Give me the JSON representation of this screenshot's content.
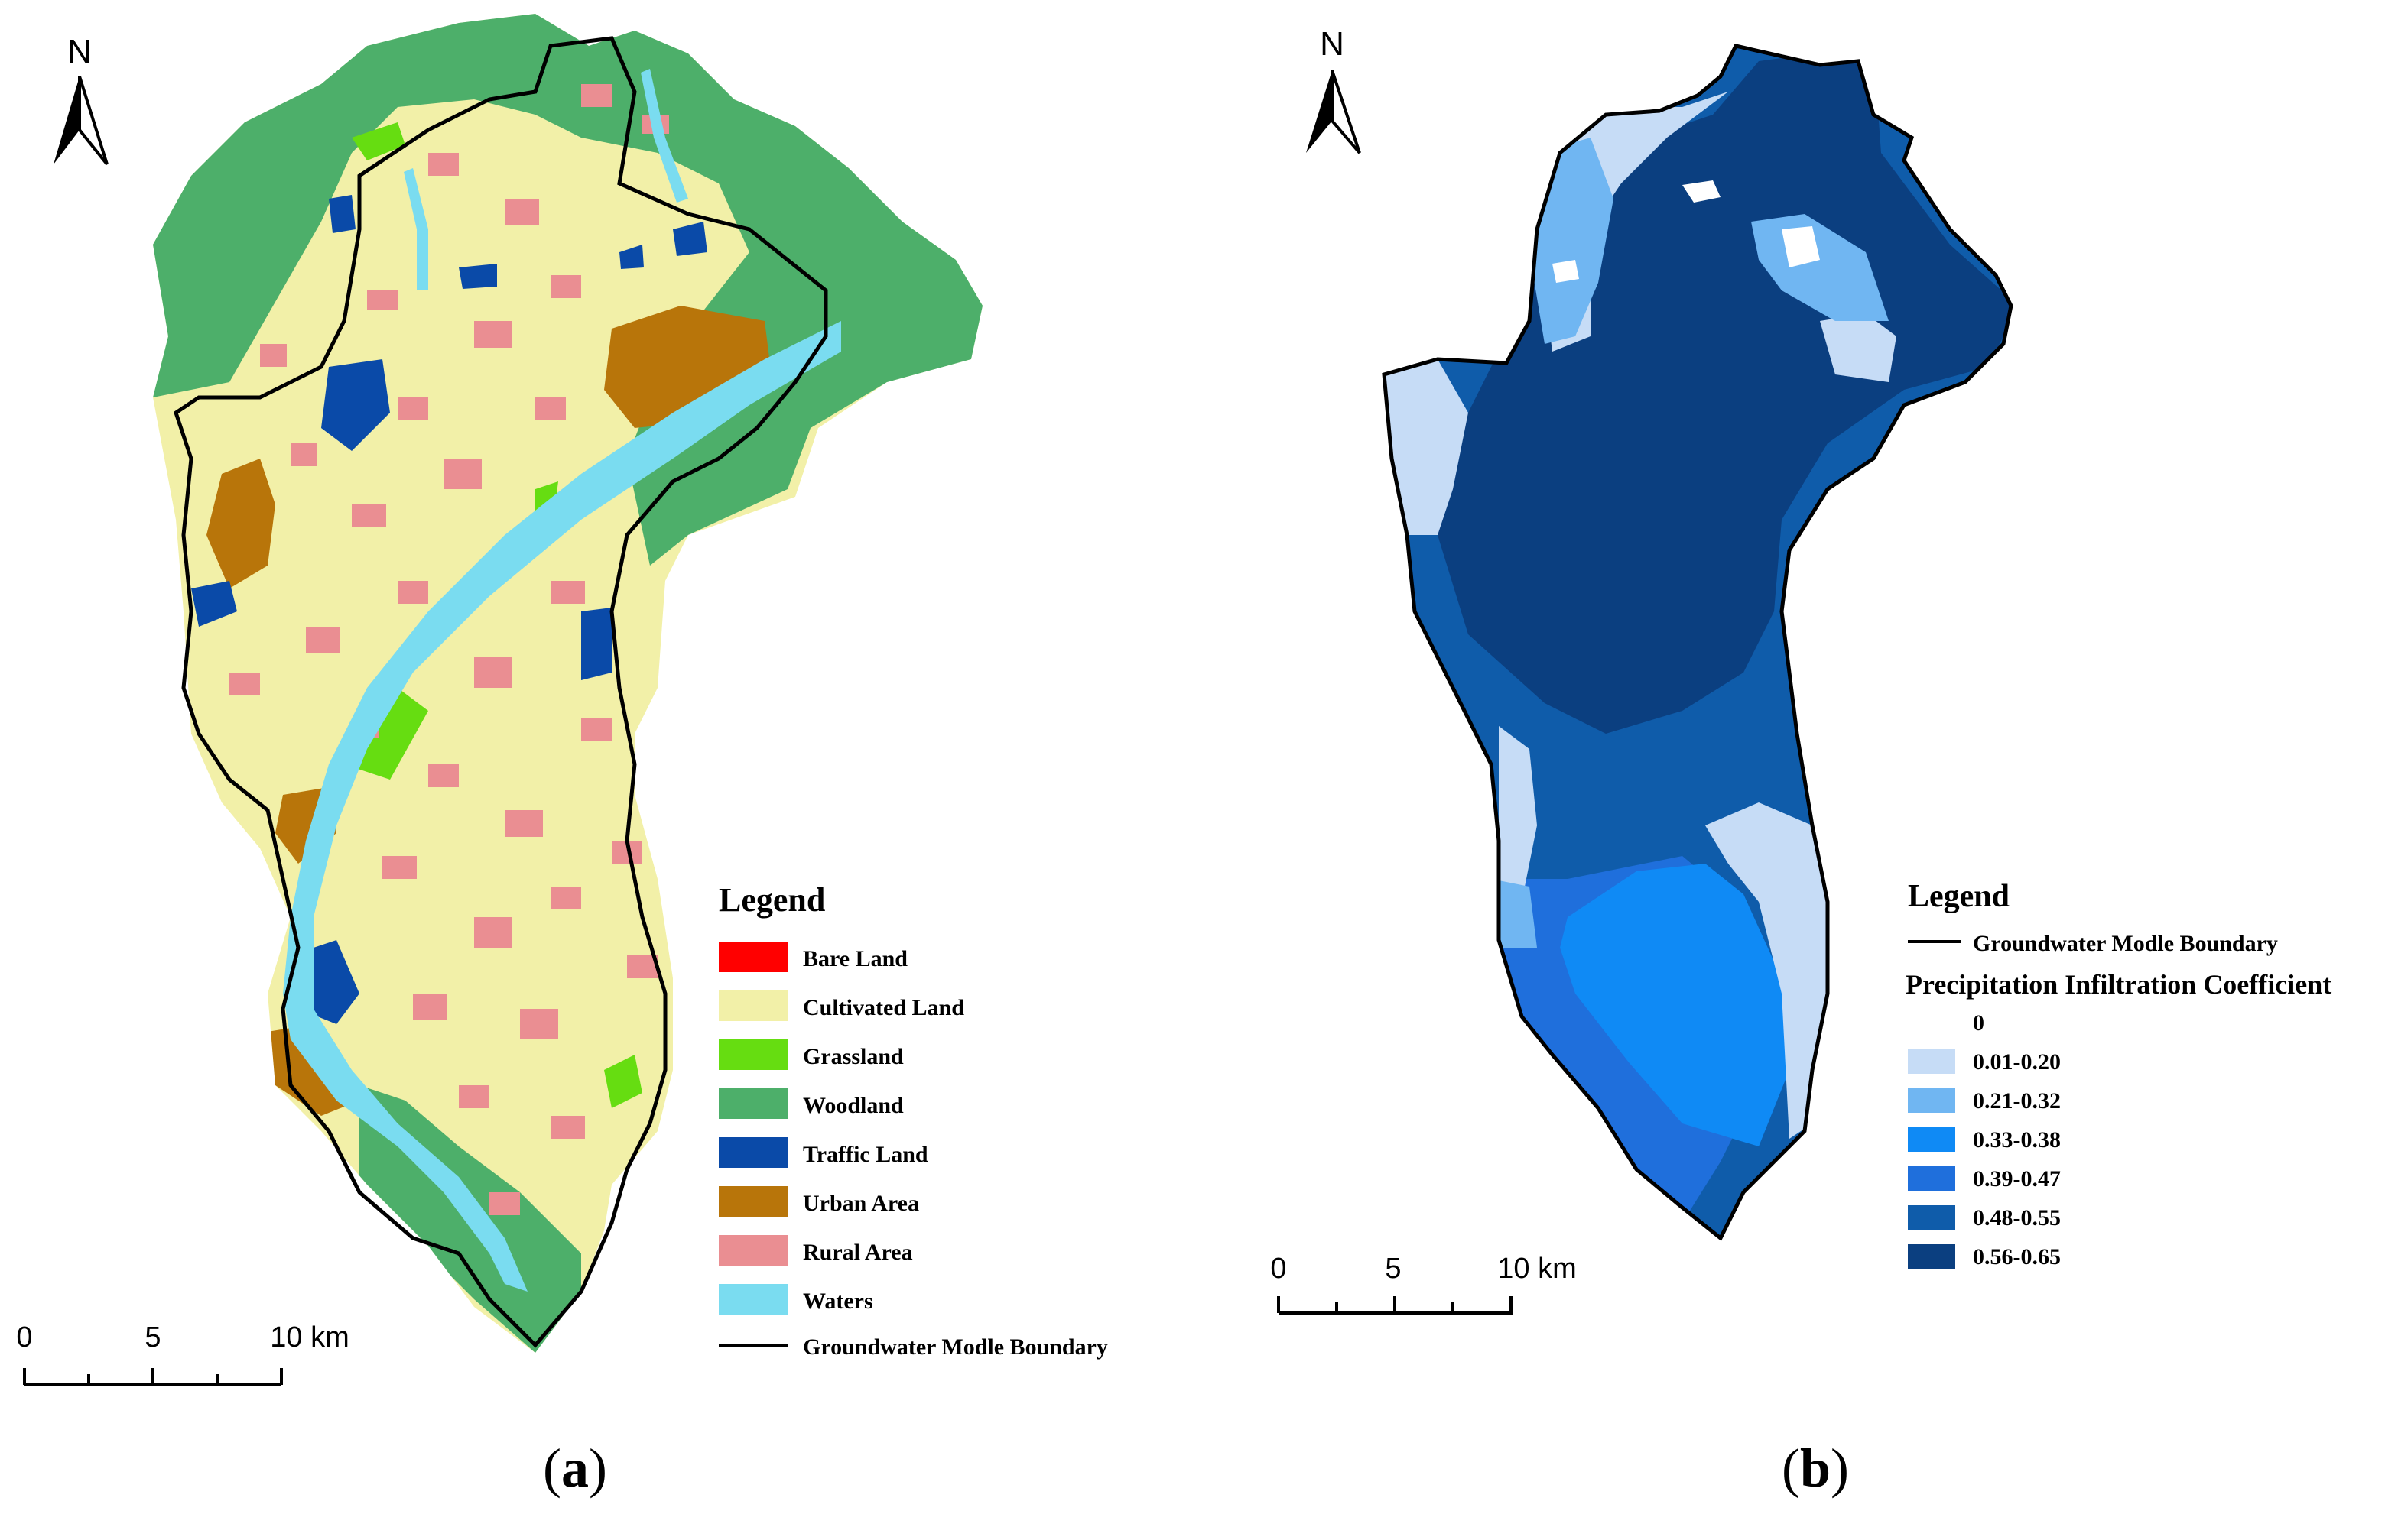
{
  "panel_a": {
    "north_label": "N",
    "legend_title": "Legend",
    "legend_items": [
      {
        "label": "Bare Land",
        "color": "#ff0000"
      },
      {
        "label": "Cultivated Land",
        "color": "#f2f0a8"
      },
      {
        "label": "Grassland",
        "color": "#66dd11"
      },
      {
        "label": "Woodland",
        "color": "#4daf6a"
      },
      {
        "label": "Traffic Land",
        "color": "#0a4aa8"
      },
      {
        "label": "Urban Area",
        "color": "#b8750a"
      },
      {
        "label": "Rural Area",
        "color": "#ea8e92"
      },
      {
        "label": "Waters",
        "color": "#7adcf0"
      }
    ],
    "boundary_label": "Groundwater Modle Boundary",
    "scale_ticks": [
      "0",
      "5",
      "10 km"
    ],
    "caption_letter": "a"
  },
  "panel_b": {
    "north_label": "N",
    "legend_title": "Legend",
    "boundary_label": "Groundwater Modle Boundary",
    "coef_title": "Precipitation Infiltration Coefficient",
    "coef_items": [
      {
        "label": "0",
        "color": "#ffffff"
      },
      {
        "label": "0.01-0.20",
        "color": "#c6dcf6"
      },
      {
        "label": "0.21-0.32",
        "color": "#70b6f2"
      },
      {
        "label": "0.33-0.38",
        "color": "#0f8af5"
      },
      {
        "label": "0.39-0.47",
        "color": "#1f6fdc"
      },
      {
        "label": "0.48-0.55",
        "color": "#0f5caa"
      },
      {
        "label": "0.56-0.65",
        "color": "#0b3f80"
      }
    ],
    "scale_ticks": [
      "0",
      "5",
      "10 km"
    ],
    "caption_letter": "b"
  }
}
